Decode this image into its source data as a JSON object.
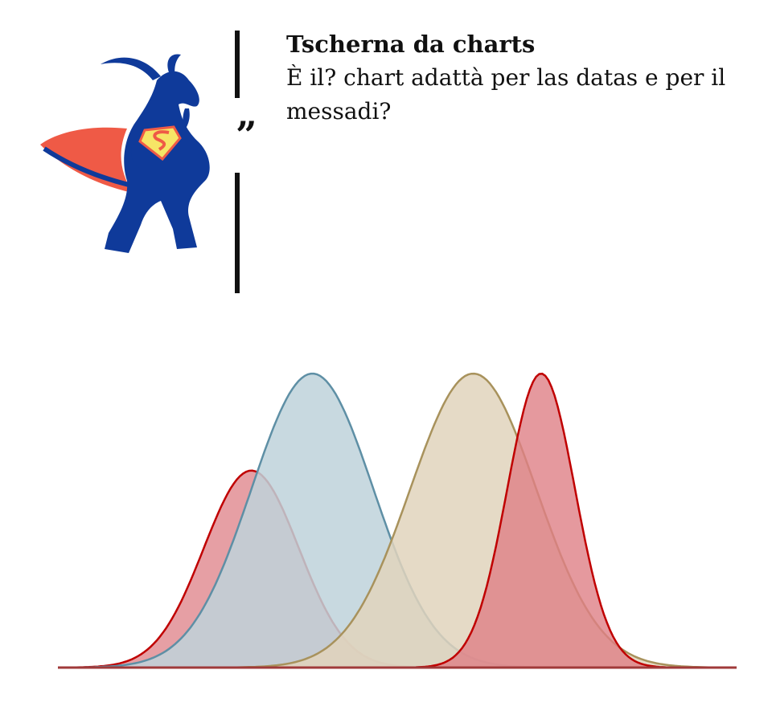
{
  "header": {
    "title": "Tscherna da charts",
    "question": "È il? chart adattà per las datas e per il messadi?",
    "quote_mark": "”"
  },
  "colors": {
    "red_fill": "#e3959a",
    "red_line": "#c00000",
    "blue_fill": "#bed2da",
    "blue_line": "#5e8fa5",
    "tan_fill": "#e0d3bc",
    "tan_line": "#a8925c",
    "mascot_blue": "#0f3a9a",
    "mascot_cape": "#ef5a46",
    "mascot_emblem": "#f6e566"
  },
  "chart_data": {
    "type": "area",
    "title": "",
    "xlabel": "",
    "ylabel": "",
    "xlim": [
      0,
      100
    ],
    "ylim": [
      0,
      1
    ],
    "grid": false,
    "legend": "none",
    "series": [
      {
        "name": "red-left",
        "mean": 28.5,
        "sd": 7.0,
        "peak": 0.67,
        "fill": "#e3959a",
        "stroke": "#c00000",
        "opacity": 0.9
      },
      {
        "name": "blue",
        "mean": 37.5,
        "sd": 9.0,
        "peak": 1.0,
        "fill": "#bed2da",
        "stroke": "#5e8fa5",
        "opacity": 0.85
      },
      {
        "name": "tan",
        "mean": 61.2,
        "sd": 9.3,
        "peak": 1.0,
        "fill": "#e0d3bc",
        "stroke": "#a8925c",
        "opacity": 0.85
      },
      {
        "name": "red-right",
        "mean": 71.2,
        "sd": 5.0,
        "peak": 1.0,
        "fill": "#de7f86",
        "stroke": "#c00000",
        "opacity": 0.8
      }
    ]
  }
}
